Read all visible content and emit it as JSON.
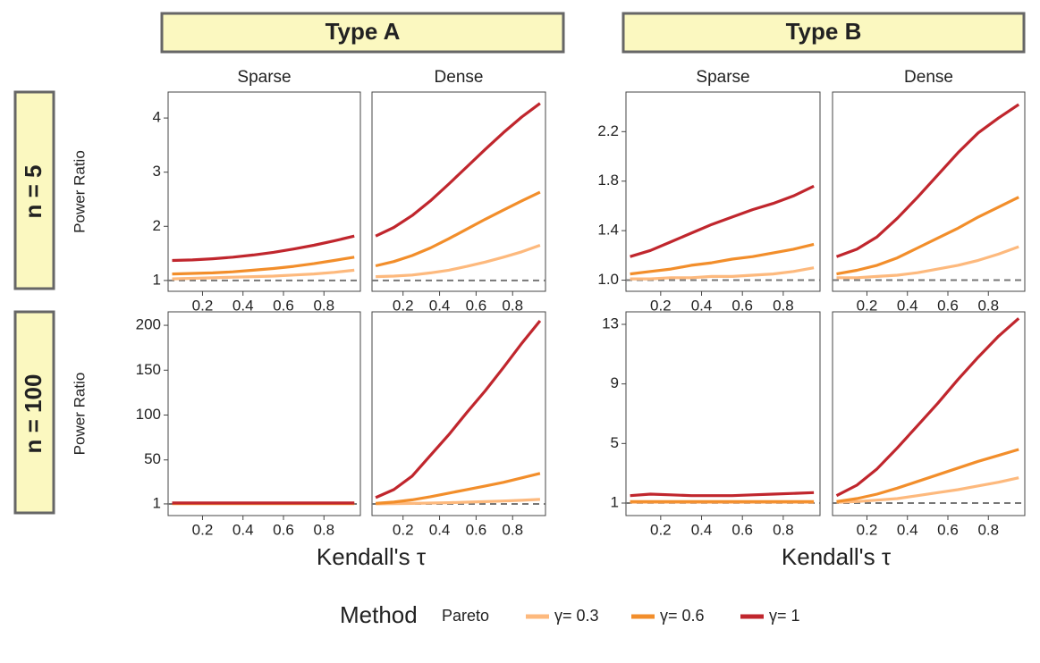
{
  "chart_data": {
    "type": "line",
    "x": [
      0.05,
      0.15,
      0.25,
      0.35,
      0.45,
      0.55,
      0.65,
      0.75,
      0.85,
      0.95
    ],
    "xlim": [
      0.03,
      0.98
    ],
    "xticks": [
      0.2,
      0.4,
      0.6,
      0.8
    ],
    "reference": 1,
    "legend_title": "Method",
    "legend_subtitle": "Pareto",
    "series": [
      {
        "name": "γ= 0.3",
        "color": "#fdb97d"
      },
      {
        "name": "γ= 0.6",
        "color": "#f28e2b"
      },
      {
        "name": "γ= 1",
        "color": "#c0262d"
      }
    ],
    "groups": [
      {
        "title": "Type A",
        "xlabel": "Kendall's τ"
      },
      {
        "title": "Type B",
        "xlabel": "Kendall's τ"
      }
    ],
    "rows": [
      {
        "label": "n = 5",
        "ylabel": "Power Ratio",
        "panels": [
          {
            "title": "Sparse",
            "ylim": [
              0.8,
              4.48
            ],
            "yticks": [
              1,
              2,
              3,
              4
            ],
            "values": [
              [
                1.03,
                1.04,
                1.05,
                1.06,
                1.07,
                1.08,
                1.1,
                1.12,
                1.15,
                1.19
              ],
              [
                1.12,
                1.13,
                1.14,
                1.16,
                1.19,
                1.22,
                1.26,
                1.31,
                1.37,
                1.43
              ],
              [
                1.37,
                1.38,
                1.4,
                1.43,
                1.47,
                1.52,
                1.58,
                1.65,
                1.73,
                1.82
              ]
            ]
          },
          {
            "title": "Dense",
            "ylim": [
              0.8,
              4.48
            ],
            "yticks": [],
            "values": [
              [
                1.07,
                1.08,
                1.1,
                1.14,
                1.19,
                1.26,
                1.34,
                1.43,
                1.53,
                1.65
              ],
              [
                1.27,
                1.35,
                1.46,
                1.6,
                1.77,
                1.95,
                2.13,
                2.3,
                2.47,
                2.63
              ],
              [
                1.82,
                1.98,
                2.2,
                2.47,
                2.78,
                3.1,
                3.42,
                3.73,
                4.02,
                4.27
              ]
            ]
          },
          {
            "title": "Sparse",
            "ylim": [
              0.91,
              2.52
            ],
            "yticks": [
              {
                "value": 1,
                "label": "1.0"
              },
              1.4,
              1.8,
              2.2
            ],
            "values": [
              [
                1.01,
                1.01,
                1.02,
                1.02,
                1.03,
                1.03,
                1.04,
                1.05,
                1.07,
                1.1
              ],
              [
                1.05,
                1.07,
                1.09,
                1.12,
                1.14,
                1.17,
                1.19,
                1.22,
                1.25,
                1.29
              ],
              [
                1.19,
                1.24,
                1.31,
                1.38,
                1.45,
                1.51,
                1.57,
                1.62,
                1.68,
                1.76
              ]
            ]
          },
          {
            "title": "Dense",
            "ylim": [
              0.91,
              2.52
            ],
            "yticks": [],
            "values": [
              [
                1.02,
                1.02,
                1.03,
                1.04,
                1.06,
                1.09,
                1.12,
                1.16,
                1.21,
                1.27
              ],
              [
                1.05,
                1.08,
                1.12,
                1.18,
                1.26,
                1.34,
                1.42,
                1.51,
                1.59,
                1.67
              ],
              [
                1.19,
                1.25,
                1.35,
                1.5,
                1.67,
                1.85,
                2.03,
                2.19,
                2.31,
                2.42
              ]
            ]
          }
        ]
      },
      {
        "label": "n = 100",
        "ylabel": "Power Ratio",
        "panels": [
          {
            "ylim": [
              -12,
              215
            ],
            "yticks": [
              1,
              50,
              100,
              150,
              200
            ],
            "values": [
              [
                1.1,
                1.1,
                1.1,
                1.1,
                1.1,
                1.1,
                1.1,
                1.1,
                1.1,
                1.1
              ],
              [
                1.5,
                1.5,
                1.5,
                1.5,
                1.5,
                1.5,
                1.5,
                1.5,
                1.5,
                1.5
              ],
              [
                2,
                2,
                2,
                2,
                2,
                2,
                2,
                2,
                2,
                2
              ]
            ]
          },
          {
            "ylim": [
              -12,
              215
            ],
            "yticks": [],
            "values": [
              [
                1,
                1.2,
                1.5,
                1.9,
                2.3,
                2.9,
                3.5,
                4.2,
                5,
                6
              ],
              [
                1.5,
                3,
                5.5,
                9,
                13,
                17,
                21,
                25,
                30,
                35
              ],
              [
                8,
                17,
                32,
                55,
                78,
                103,
                127,
                153,
                180,
                205
              ]
            ]
          },
          {
            "ylim": [
              0.16,
              13.84
            ],
            "yticks": [
              1,
              5,
              9,
              13
            ],
            "values": [
              [
                1.05,
                1.05,
                1.05,
                1.05,
                1.05,
                1.05,
                1.05,
                1.05,
                1.05,
                1.05
              ],
              [
                1.1,
                1.1,
                1.1,
                1.1,
                1.1,
                1.1,
                1.1,
                1.1,
                1.1,
                1.1
              ],
              [
                1.5,
                1.6,
                1.55,
                1.5,
                1.5,
                1.5,
                1.55,
                1.6,
                1.65,
                1.7
              ]
            ]
          },
          {
            "ylim": [
              0.16,
              13.84
            ],
            "yticks": [],
            "values": [
              [
                1.05,
                1.1,
                1.2,
                1.3,
                1.5,
                1.7,
                1.9,
                2.15,
                2.4,
                2.7
              ],
              [
                1.1,
                1.3,
                1.6,
                2,
                2.45,
                2.9,
                3.35,
                3.8,
                4.2,
                4.6
              ],
              [
                1.5,
                2.2,
                3.3,
                4.7,
                6.2,
                7.7,
                9.3,
                10.8,
                12.2,
                13.4
              ]
            ]
          }
        ]
      }
    ]
  }
}
